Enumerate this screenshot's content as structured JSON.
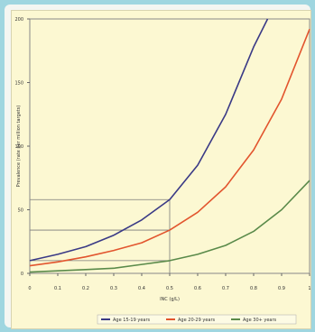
{
  "chart_data": {
    "type": "line",
    "xlabel": "INC (g/L)",
    "ylabel": "Prevalence (rate per million targets)",
    "xlim": [
      0,
      1
    ],
    "ylim": [
      0,
      200
    ],
    "grid": false,
    "legend_position": "bottom",
    "x_ticks": [
      "0",
      "0.1",
      "0.2",
      "0.3",
      "0.4",
      "0.5",
      "0.6",
      "0.7",
      "0.8",
      "0.9",
      "1"
    ],
    "y_ticks": [
      "0",
      "50",
      "100",
      "150",
      "200"
    ],
    "series": [
      {
        "name": "Age 15-19 years",
        "color": "#3a3a86",
        "x": [
          0,
          0.1,
          0.2,
          0.3,
          0.4,
          0.5,
          0.6,
          0.7,
          0.8,
          0.85
        ],
        "y": [
          10,
          15,
          21,
          30,
          42,
          58,
          85,
          125,
          178,
          200
        ]
      },
      {
        "name": "Age 20-29 years",
        "color": "#e2552e",
        "x": [
          0,
          0.1,
          0.2,
          0.3,
          0.4,
          0.5,
          0.6,
          0.7,
          0.8,
          0.9,
          1
        ],
        "y": [
          6,
          9,
          13,
          18,
          24,
          34,
          48,
          68,
          97,
          137,
          192
        ]
      },
      {
        "name": "Age 30+ years",
        "color": "#5a8a4a",
        "x": [
          0,
          0.1,
          0.2,
          0.3,
          0.4,
          0.5,
          0.6,
          0.7,
          0.8,
          0.9,
          1
        ],
        "y": [
          1,
          2,
          3,
          4,
          7,
          10,
          15,
          22,
          33,
          50,
          73
        ]
      }
    ],
    "reference_lines": [
      {
        "x": 0.5,
        "y": 58
      },
      {
        "x": 0.5,
        "y": 34
      },
      {
        "x": 0.5,
        "y": 10
      }
    ]
  }
}
